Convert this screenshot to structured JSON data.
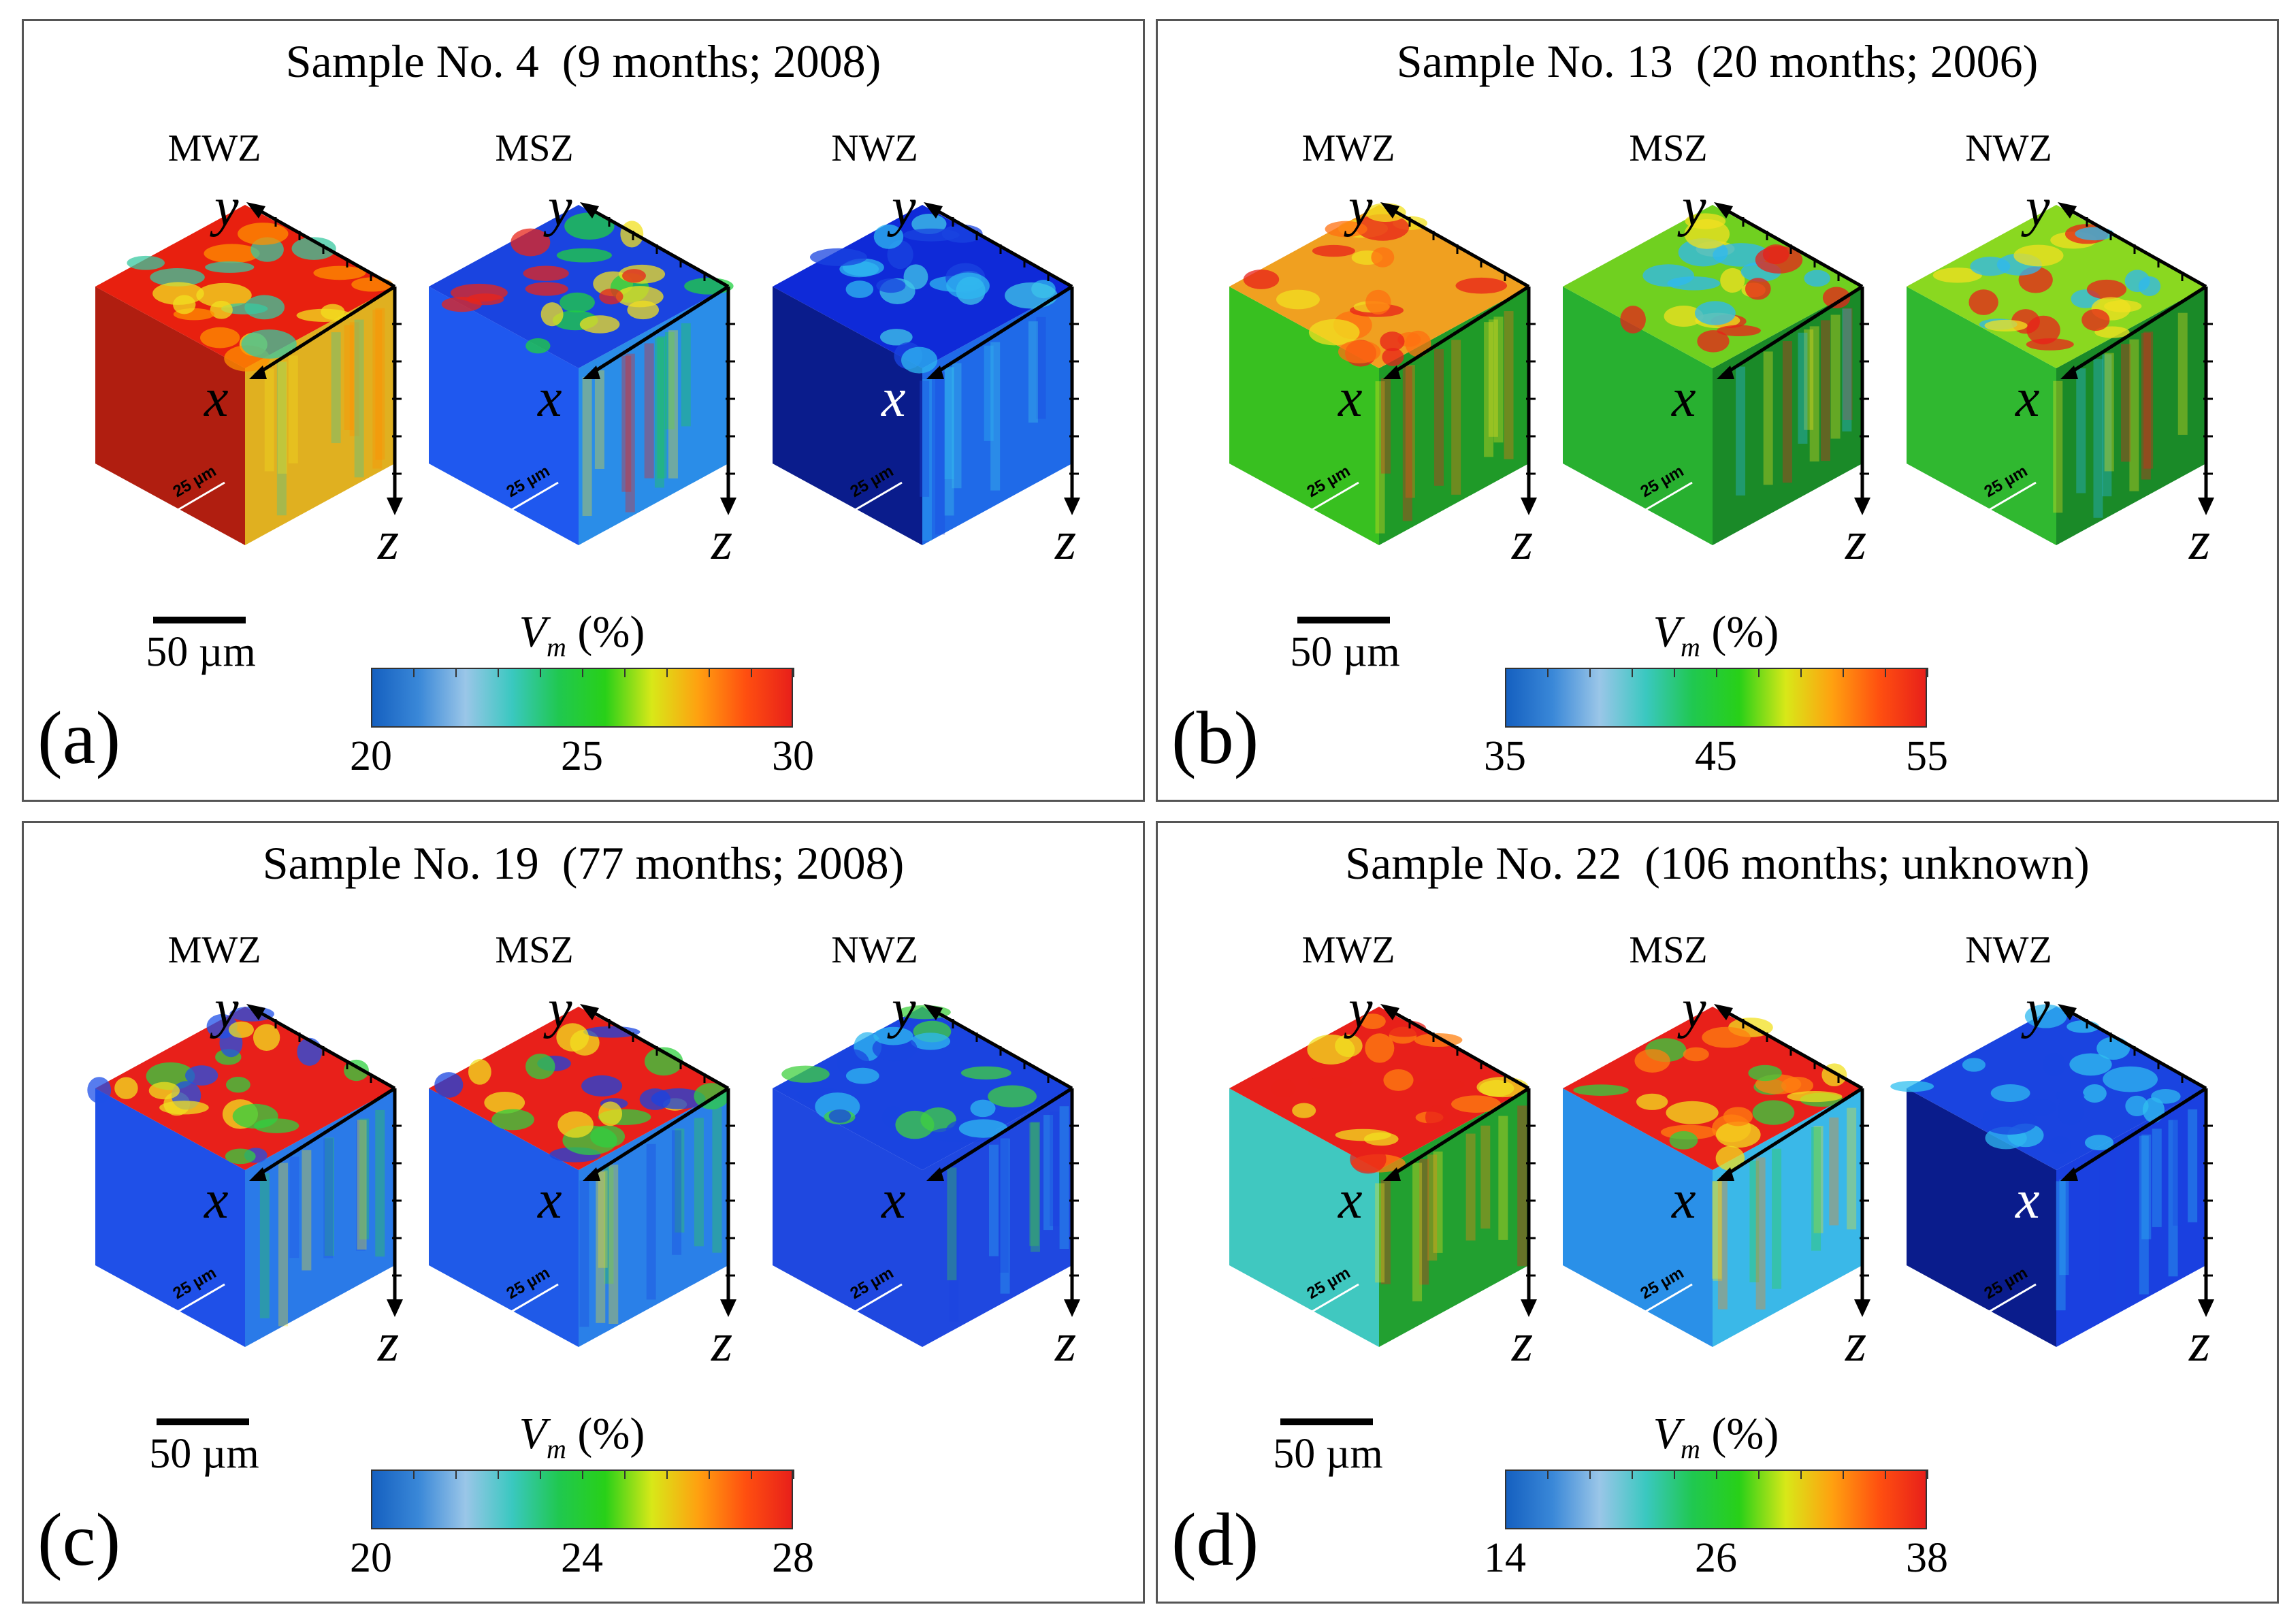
{
  "figure": {
    "panels": [
      {
        "id": "a",
        "label": "(a)",
        "title": "Sample No. 4  (9 months; 2008)",
        "zones": [
          "MWZ",
          "MSZ",
          "NWZ"
        ],
        "cube_scale": "25 µm",
        "scale_bar": "50 µm",
        "cbar_quantity": "V",
        "cbar_sub": "m",
        "cbar_unit": "(%)",
        "ticks": [
          "20",
          "25",
          "30"
        ],
        "cube_colors": [
          {
            "top": "#e8200f",
            "left": "#b01e10",
            "right": "#e0b020",
            "spots": [
              "#38c8a0",
              "#ff9000",
              "#f2e020"
            ]
          },
          {
            "top": "#1a44e0",
            "left": "#1f58ef",
            "right": "#2a8de8",
            "spots": [
              "#e8241a",
              "#20d040",
              "#f2e020"
            ]
          },
          {
            "top": "#0f2ad8",
            "left": "#0a1c8c",
            "right": "#1f6ae8",
            "spots": [
              "#2fb8f0",
              "#40c8e8",
              "#1a44e0"
            ]
          }
        ]
      },
      {
        "id": "b",
        "label": "(b)",
        "title": "Sample No. 13  (20 months; 2006)",
        "zones": [
          "MWZ",
          "MSZ",
          "NWZ"
        ],
        "cube_scale": "25 µm",
        "scale_bar": "50 µm",
        "cbar_quantity": "V",
        "cbar_sub": "m",
        "cbar_unit": "(%)",
        "ticks": [
          "35",
          "45",
          "55"
        ],
        "cube_colors": [
          {
            "top": "#f0a020",
            "left": "#38c020",
            "right": "#1f9a28",
            "spots": [
              "#e8201a",
              "#f2e020",
              "#ff7010"
            ]
          },
          {
            "top": "#70d020",
            "left": "#28b030",
            "right": "#1a8a28",
            "spots": [
              "#e8201a",
              "#f2e020",
              "#2fb8f0"
            ]
          },
          {
            "top": "#8ad820",
            "left": "#30b830",
            "right": "#1a8a28",
            "spots": [
              "#e8201a",
              "#f2e020",
              "#2fb8f0"
            ]
          }
        ]
      },
      {
        "id": "c",
        "label": "(c)",
        "title": "Sample No. 19  (77 months; 2008)",
        "zones": [
          "MWZ",
          "MSZ",
          "NWZ"
        ],
        "cube_scale": "25 µm",
        "scale_bar": "50 µm",
        "cbar_quantity": "V",
        "cbar_sub": "m",
        "cbar_unit": "(%)",
        "ticks": [
          "20",
          "24",
          "28"
        ],
        "cube_colors": [
          {
            "top": "#e8201a",
            "left": "#1f50e8",
            "right": "#2a7ae8",
            "spots": [
              "#1f50e8",
              "#30d040",
              "#f2e020"
            ]
          },
          {
            "top": "#e8201a",
            "left": "#1f5ae8",
            "right": "#2a80e8",
            "spots": [
              "#1a44e0",
              "#30d040",
              "#f2e020"
            ]
          },
          {
            "top": "#1a44e0",
            "left": "#1f48e0",
            "right": "#1f48e0",
            "spots": [
              "#40d040",
              "#2fb8f0",
              "#1a44e0"
            ]
          }
        ]
      },
      {
        "id": "d",
        "label": "(d)",
        "title": "Sample No. 22  (106 months; unknown)",
        "zones": [
          "MWZ",
          "MSZ",
          "NWZ"
        ],
        "cube_scale": "25 µm",
        "scale_bar": "50 µm",
        "cbar_quantity": "V",
        "cbar_sub": "m",
        "cbar_unit": "(%)",
        "ticks": [
          "14",
          "26",
          "38"
        ],
        "cube_colors": [
          {
            "top": "#e8201a",
            "left": "#40c8c0",
            "right": "#22a030",
            "spots": [
              "#ff8010",
              "#f2e020",
              "#e8201a"
            ]
          },
          {
            "top": "#e8201a",
            "left": "#2a90e8",
            "right": "#3ab8e8",
            "spots": [
              "#ff8010",
              "#f2e020",
              "#30d040"
            ]
          },
          {
            "top": "#1a44e0",
            "left": "#0a1c8c",
            "right": "#1a40e0",
            "spots": [
              "#30c0f0",
              "#2fb8f0",
              "#1a44e0"
            ]
          }
        ]
      }
    ],
    "axes": {
      "x": "x",
      "y": "y",
      "z": "z"
    },
    "colormap": [
      "#1560c0",
      "#3a88d8",
      "#9ac6e8",
      "#3ac8c0",
      "#20c850",
      "#28d018",
      "#d8e818",
      "#ffa010",
      "#ff5010",
      "#e8201a"
    ]
  }
}
